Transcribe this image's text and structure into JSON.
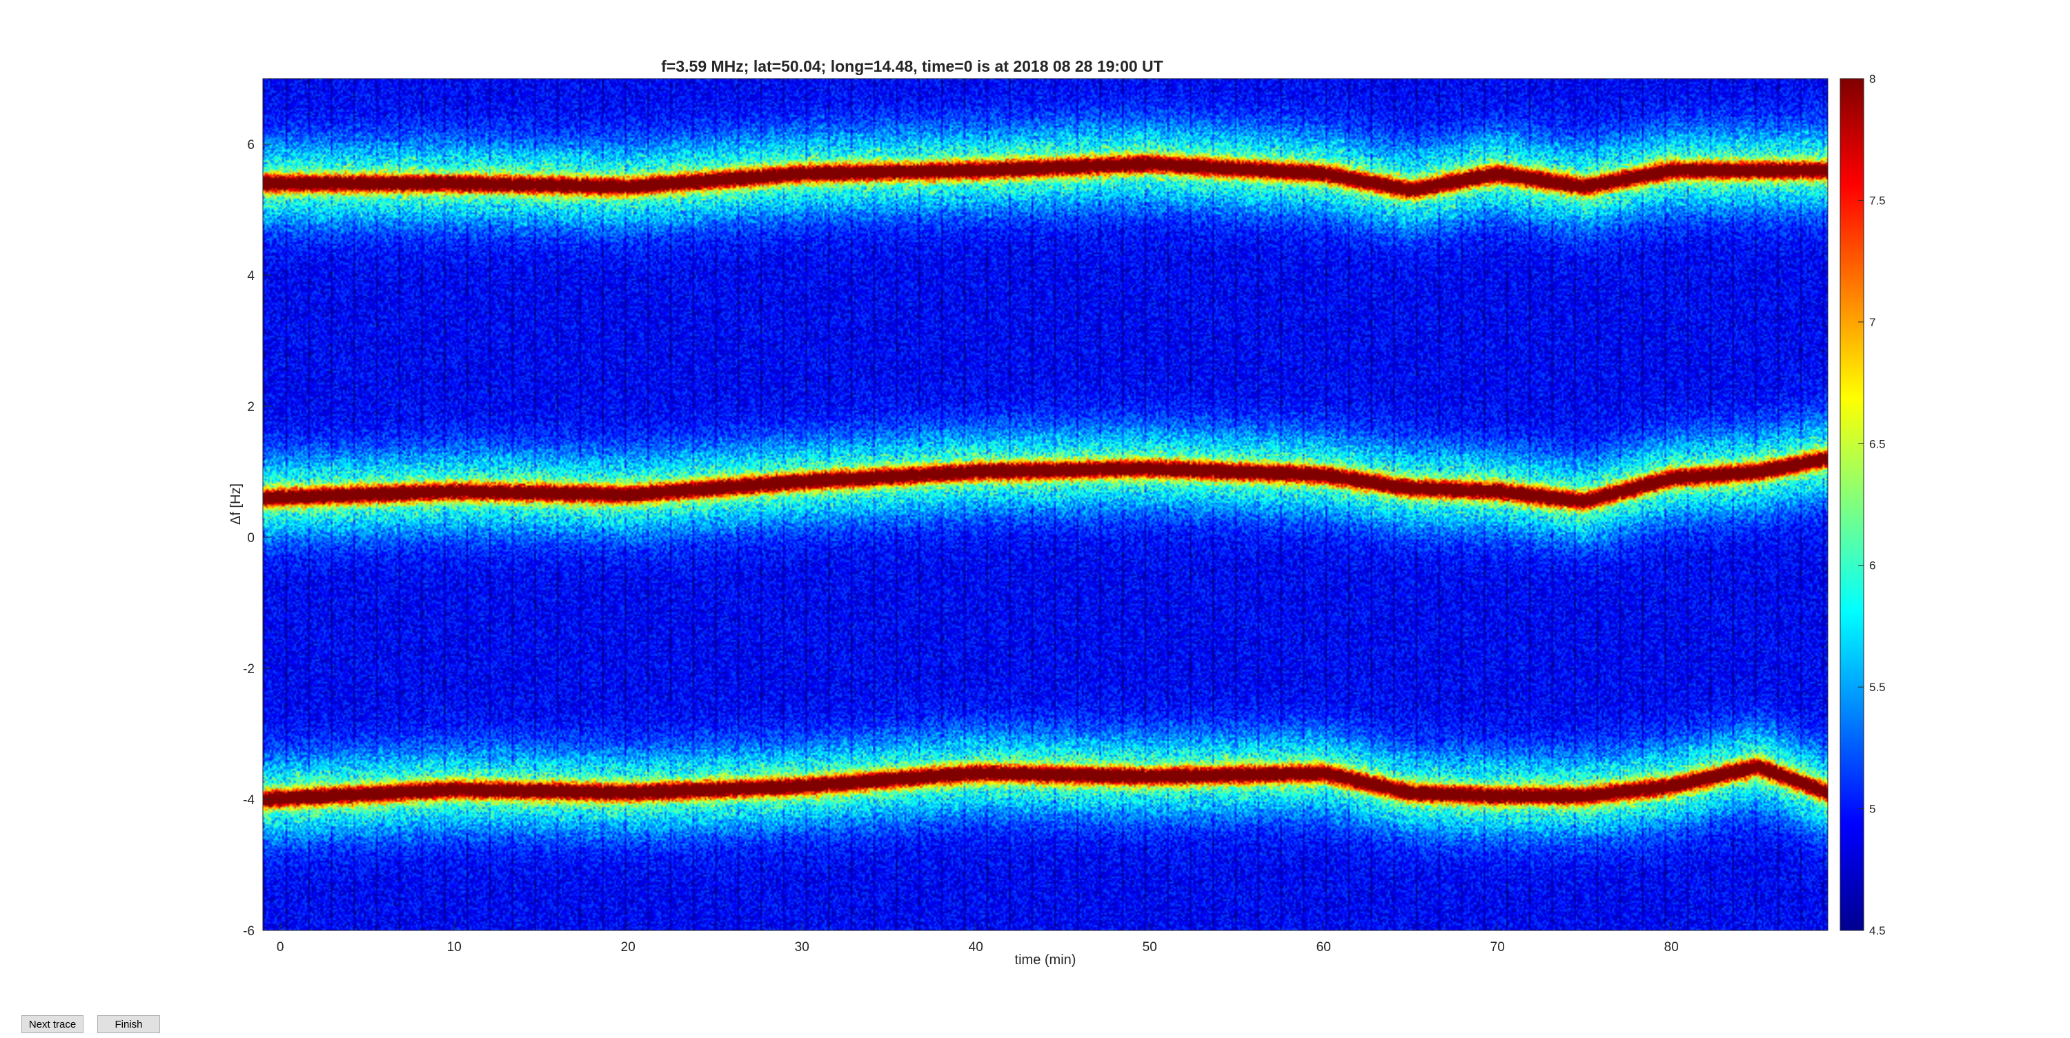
{
  "chart_data": {
    "type": "heatmap",
    "title": "f=3.59 MHz;  lat=50.04; long=14.48, time=0 is at 2018 08 28 19:00 UT",
    "xlabel": "time (min)",
    "ylabel": "Δf [Hz]",
    "xlim": [
      -1,
      89
    ],
    "ylim": [
      -6,
      7
    ],
    "xticks": [
      0,
      10,
      20,
      30,
      40,
      50,
      60,
      70,
      80
    ],
    "yticks": [
      -6,
      -4,
      -2,
      0,
      2,
      4,
      6
    ],
    "colormap": "jet",
    "clim": [
      4.5,
      8
    ],
    "colorbar_ticks": [
      "4.5",
      "5",
      "5.5",
      "6",
      "6.5",
      "7",
      "7.5",
      "8"
    ],
    "traces": [
      {
        "name": "",
        "points": [
          [
            -1,
            5.4
          ],
          [
            10,
            5.4
          ],
          [
            20,
            5.35
          ],
          [
            30,
            5.55
          ],
          [
            40,
            5.6
          ],
          [
            50,
            5.7
          ],
          [
            60,
            5.55
          ],
          [
            65,
            5.3
          ],
          [
            70,
            5.55
          ],
          [
            75,
            5.35
          ],
          [
            80,
            5.6
          ],
          [
            89,
            5.6
          ]
        ]
      },
      {
        "name": "",
        "points": [
          [
            -1,
            0.6
          ],
          [
            10,
            0.7
          ],
          [
            20,
            0.65
          ],
          [
            30,
            0.85
          ],
          [
            40,
            1.0
          ],
          [
            50,
            1.05
          ],
          [
            60,
            0.95
          ],
          [
            65,
            0.75
          ],
          [
            70,
            0.7
          ],
          [
            75,
            0.55
          ],
          [
            80,
            0.9
          ],
          [
            85,
            1.0
          ],
          [
            89,
            1.2
          ]
        ]
      },
      {
        "name": "",
        "points": [
          [
            -1,
            -4.0
          ],
          [
            10,
            -3.85
          ],
          [
            20,
            -3.9
          ],
          [
            30,
            -3.8
          ],
          [
            40,
            -3.6
          ],
          [
            50,
            -3.65
          ],
          [
            60,
            -3.6
          ],
          [
            65,
            -3.9
          ],
          [
            70,
            -3.95
          ],
          [
            75,
            -3.95
          ],
          [
            80,
            -3.8
          ],
          [
            85,
            -3.5
          ],
          [
            89,
            -3.9
          ]
        ]
      }
    ]
  },
  "buttons": {
    "next_trace": "Next trace",
    "finish": "Finish"
  }
}
